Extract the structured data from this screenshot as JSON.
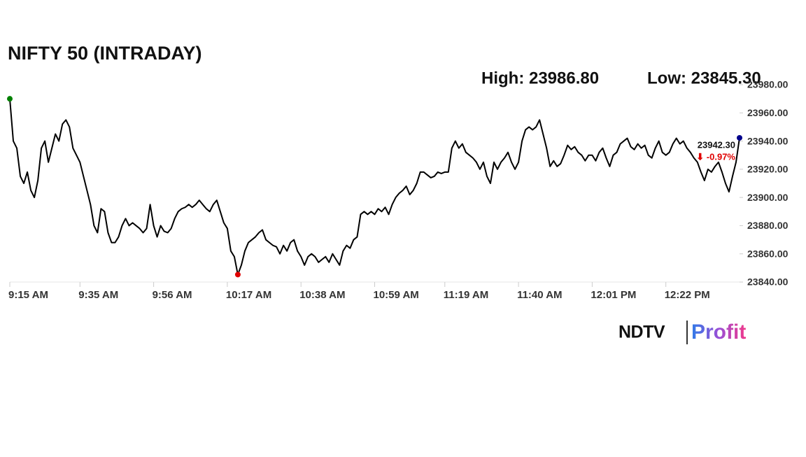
{
  "chart_data": {
    "type": "line",
    "title": "NIFTY 50 (INTRADAY)",
    "annotations": [
      "High: 23986.80",
      "Low: 23845.30",
      "23942.30",
      "⬇ -0.97%"
    ],
    "color": "#000000",
    "start_marker_color": "#008000",
    "low_marker_color": "#e00000",
    "last_marker_color": "#00008b",
    "change_color": "#e00000",
    "values": [
      23970,
      23940,
      23935,
      23915,
      23910,
      23918,
      23905,
      23900,
      23912,
      23935,
      23940,
      23925,
      23935,
      23945,
      23940,
      23952,
      23955,
      23950,
      23935,
      23930,
      23925,
      23915,
      23905,
      23895,
      23880,
      23875,
      23892,
      23890,
      23875,
      23868,
      23868,
      23872,
      23880,
      23885,
      23880,
      23882,
      23880,
      23878,
      23875,
      23878,
      23895,
      23880,
      23872,
      23880,
      23876,
      23875,
      23878,
      23885,
      23890,
      23892,
      23893,
      23895,
      23893,
      23895,
      23898,
      23895,
      23892,
      23890,
      23895,
      23898,
      23890,
      23882,
      23878,
      23862,
      23858,
      23845.3,
      23852,
      23862,
      23868,
      23870,
      23872,
      23875,
      23877,
      23870,
      23868,
      23866,
      23865,
      23860,
      23866,
      23862,
      23868,
      23870,
      23862,
      23858,
      23852,
      23858,
      23860,
      23858,
      23854,
      23856,
      23858,
      23854,
      23860,
      23856,
      23852,
      23862,
      23866,
      23864,
      23870,
      23872,
      23888,
      23890,
      23888,
      23890,
      23888,
      23892,
      23890,
      23893,
      23888,
      23895,
      23900,
      23903,
      23905,
      23908,
      23902,
      23905,
      23910,
      23918,
      23918,
      23916,
      23914,
      23915,
      23918,
      23917,
      23918,
      23918,
      23935,
      23940,
      23935,
      23938,
      23932,
      23930,
      23928,
      23925,
      23920,
      23925,
      23915,
      23910,
      23925,
      23920,
      23925,
      23928,
      23932,
      23925,
      23920,
      23925,
      23940,
      23948,
      23950,
      23948,
      23950,
      23955,
      23945,
      23935,
      23922,
      23926,
      23922,
      23924,
      23930,
      23937,
      23934,
      23936,
      23932,
      23930,
      23926,
      23930,
      23930,
      23926,
      23932,
      23935,
      23928,
      23922,
      23930,
      23932,
      23938,
      23940,
      23942,
      23936,
      23934,
      23938,
      23935,
      23937,
      23930,
      23928,
      23935,
      23940,
      23932,
      23930,
      23932,
      23938,
      23942,
      23938,
      23940,
      23935,
      23932,
      23928,
      23925,
      23918,
      23912,
      23920,
      23918,
      23922,
      23925,
      23918,
      23910,
      23904,
      23915,
      23925,
      23942.3
    ],
    "xlim": [
      0,
      208
    ],
    "xticks": [
      {
        "value": 0,
        "label": "9:15 AM"
      },
      {
        "value": 20,
        "label": "9:35 AM"
      },
      {
        "value": 41,
        "label": "9:56 AM"
      },
      {
        "value": 62,
        "label": "10:17 AM"
      },
      {
        "value": 83,
        "label": "10:38 AM"
      },
      {
        "value": 104,
        "label": "10:59 AM"
      },
      {
        "value": 124,
        "label": "11:19 AM"
      },
      {
        "value": 145,
        "label": "11:40 AM"
      },
      {
        "value": 166,
        "label": "12:01 PM"
      },
      {
        "value": 187,
        "label": "12:22 PM"
      }
    ],
    "ylim": [
      23840,
      23980
    ],
    "yticks": [
      {
        "value": 23840,
        "label": "23840.00"
      },
      {
        "value": 23860,
        "label": "23860.00"
      },
      {
        "value": 23880,
        "label": "23880.00"
      },
      {
        "value": 23900,
        "label": "23900.00"
      },
      {
        "value": 23920,
        "label": "23920.00"
      },
      {
        "value": 23940,
        "label": "23940.00"
      },
      {
        "value": 23960,
        "label": "23960.00"
      },
      {
        "value": 23980,
        "label": "23980.00"
      }
    ],
    "logo": {
      "brand": "NDTV",
      "product": "Profit"
    }
  }
}
